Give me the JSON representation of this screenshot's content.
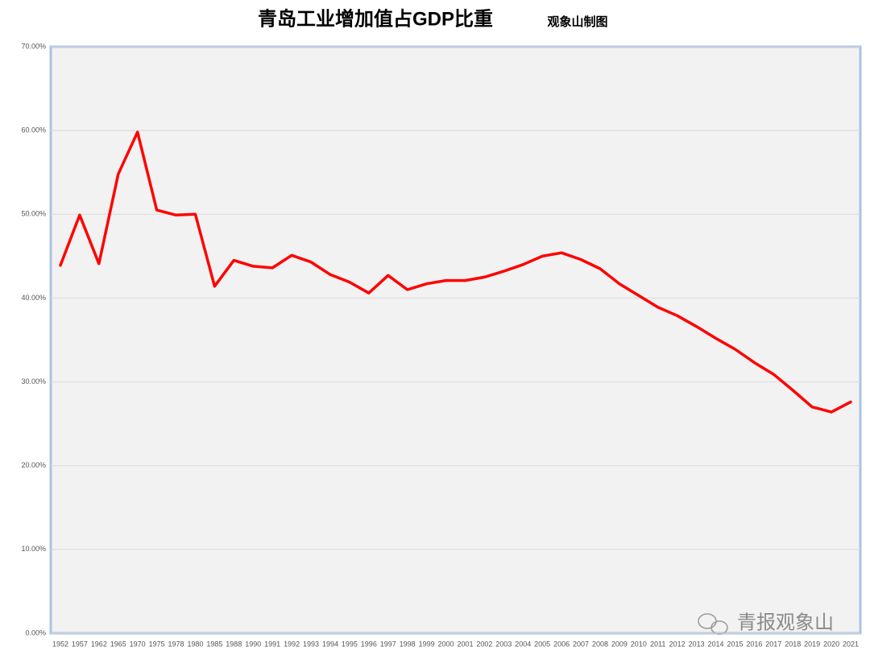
{
  "chart_data": {
    "type": "line",
    "title": "青岛工业增加值占GDP比重",
    "subtitle": "观象山制图",
    "watermark": "青报观象山",
    "categories": [
      "1952",
      "1957",
      "1962",
      "1965",
      "1970",
      "1975",
      "1978",
      "1980",
      "1985",
      "1988",
      "1990",
      "1991",
      "1992",
      "1993",
      "1994",
      "1995",
      "1996",
      "1997",
      "1998",
      "1999",
      "2000",
      "2001",
      "2002",
      "2003",
      "2004",
      "2005",
      "2006",
      "2007",
      "2008",
      "2009",
      "2010",
      "2011",
      "2012",
      "2013",
      "2014",
      "2015",
      "2016",
      "2017",
      "2018",
      "2019",
      "2020",
      "2021"
    ],
    "values": [
      43.9,
      49.9,
      44.1,
      54.8,
      59.8,
      50.5,
      49.9,
      50.0,
      41.4,
      44.5,
      43.8,
      43.6,
      45.1,
      44.3,
      42.8,
      41.9,
      40.6,
      42.7,
      41.0,
      41.7,
      42.1,
      42.1,
      42.5,
      43.2,
      44.0,
      45.0,
      45.4,
      44.6,
      43.5,
      41.7,
      40.3,
      38.9,
      37.9,
      36.6,
      35.2,
      33.9,
      32.3,
      30.9,
      29.0,
      27.0,
      26.4,
      27.6
    ],
    "color": "#ff0000",
    "ylim": [
      0,
      70
    ],
    "yticks": [
      {
        "value": 0,
        "label": "0.00%"
      },
      {
        "value": 10,
        "label": "10.00%"
      },
      {
        "value": 20,
        "label": "20.00%"
      },
      {
        "value": 30,
        "label": "30.00%"
      },
      {
        "value": 40,
        "label": "40.00%"
      },
      {
        "value": 50,
        "label": "50.00%"
      },
      {
        "value": 60,
        "label": "60.00%"
      },
      {
        "value": 70,
        "label": "70.00%"
      }
    ],
    "grid": true
  }
}
